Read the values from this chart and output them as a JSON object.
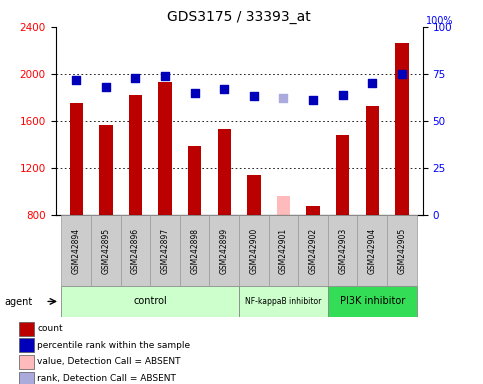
{
  "title": "GDS3175 / 33393_at",
  "samples": [
    "GSM242894",
    "GSM242895",
    "GSM242896",
    "GSM242897",
    "GSM242898",
    "GSM242899",
    "GSM242900",
    "GSM242901",
    "GSM242902",
    "GSM242903",
    "GSM242904",
    "GSM242905"
  ],
  "bar_values": [
    1750,
    1565,
    1820,
    1930,
    1385,
    1530,
    1140,
    null,
    880,
    1480,
    1730,
    2260
  ],
  "bar_absent_values": [
    null,
    null,
    null,
    null,
    null,
    null,
    null,
    960,
    null,
    null,
    null,
    null
  ],
  "bar_color_normal": "#bb0000",
  "bar_color_absent": "#ffbbbb",
  "scatter_values": [
    72,
    68,
    73,
    74,
    65,
    67,
    63,
    null,
    61,
    64,
    70,
    75
  ],
  "scatter_absent_values": [
    null,
    null,
    null,
    null,
    null,
    null,
    null,
    62,
    null,
    null,
    null,
    null
  ],
  "scatter_color_normal": "#0000bb",
  "scatter_color_absent": "#aaaadd",
  "ylim_left": [
    800,
    2400
  ],
  "ylim_right": [
    0,
    100
  ],
  "yticks_left": [
    800,
    1200,
    1600,
    2000,
    2400
  ],
  "yticks_right": [
    0,
    25,
    50,
    75,
    100
  ],
  "groups": [
    {
      "label": "control",
      "start": 0,
      "end": 5,
      "color": "#ccffcc"
    },
    {
      "label": "NF-kappaB inhibitor",
      "start": 6,
      "end": 8,
      "color": "#ccffcc"
    },
    {
      "label": "PI3K inhibitor",
      "start": 9,
      "end": 11,
      "color": "#33dd55"
    }
  ],
  "legend_items": [
    {
      "label": "count",
      "color": "#bb0000"
    },
    {
      "label": "percentile rank within the sample",
      "color": "#0000bb"
    },
    {
      "label": "value, Detection Call = ABSENT",
      "color": "#ffbbbb"
    },
    {
      "label": "rank, Detection Call = ABSENT",
      "color": "#aaaadd"
    }
  ],
  "bar_width": 0.45,
  "scatter_size": 35,
  "ticklabel_box_color": "#cccccc",
  "ticklabel_box_edge": "#999999"
}
